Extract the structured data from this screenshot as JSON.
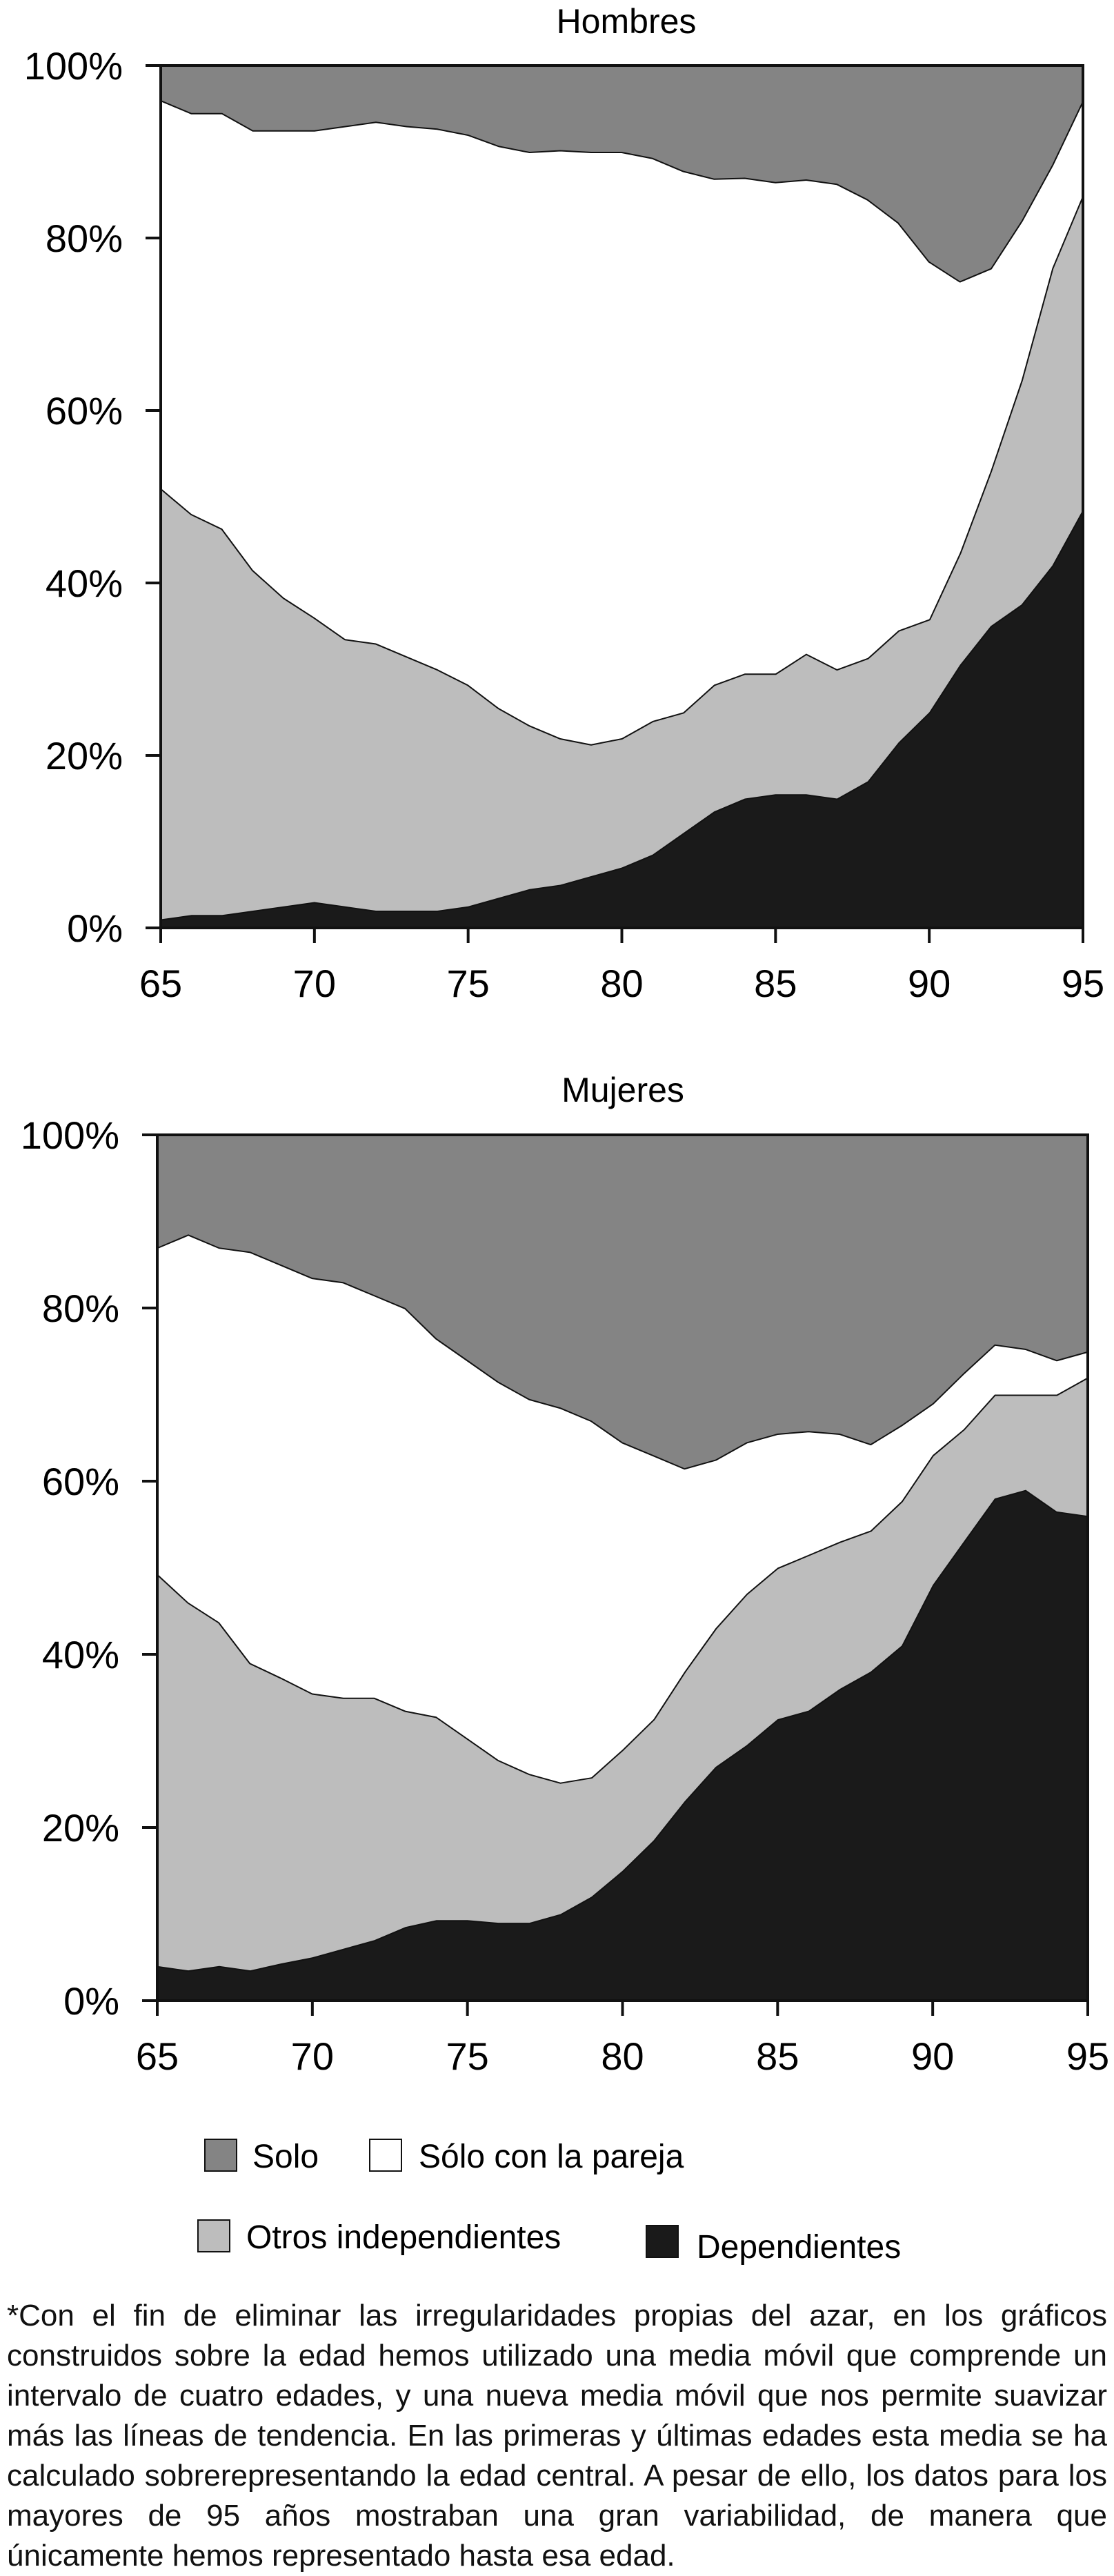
{
  "colors": {
    "solo": "#848484",
    "pareja": "#ffffff",
    "otros": "#bdbdbd",
    "dependientes": "#1a1a1a",
    "stroke": "#111111"
  },
  "legend": [
    {
      "key": "solo",
      "label": "Solo"
    },
    {
      "key": "pareja",
      "label": "Sólo con la pareja"
    },
    {
      "key": "otros",
      "label": "Otros independientes"
    },
    {
      "key": "dependientes",
      "label": "Dependientes"
    }
  ],
  "footnote": "*Con el fin de eliminar las irregularidades propias del azar, en los gráficos construidos sobre la edad hemos utilizado una media móvil que comprende un intervalo de cuatro edades, y una nueva media móvil que nos permite suavizar más las líneas de tendencia. En las primeras y últimas edades esta media se ha calculado sobrerepresentando la edad central. A pesar de ello, los datos para los mayores de 95 años mostraban una gran variabilidad, de manera que únicamente hemos representado hasta esa edad.",
  "chart_data": [
    {
      "type": "area",
      "stacked": true,
      "title": "Hombres",
      "x": [
        65,
        66,
        67,
        68,
        69,
        70,
        71,
        72,
        73,
        74,
        75,
        76,
        77,
        78,
        79,
        80,
        81,
        82,
        83,
        84,
        85,
        86,
        87,
        88,
        89,
        90,
        91,
        92,
        93,
        94,
        95
      ],
      "x_ticks": [
        "65",
        "70",
        "75",
        "80",
        "85",
        "90",
        "95"
      ],
      "y_ticks": [
        "0%",
        "20%",
        "40%",
        "60%",
        "80%",
        "100%"
      ],
      "ylim": [
        0,
        100
      ],
      "grid": false,
      "series": [
        {
          "name": "Dependientes",
          "key": "dependientes",
          "values": [
            1,
            1.5,
            1.5,
            2,
            2.5,
            3,
            2.5,
            2,
            2,
            2,
            2.5,
            3.5,
            4.5,
            5,
            6,
            7,
            8.5,
            11,
            13.5,
            15,
            15.5,
            15.5,
            15,
            17,
            21.5,
            25,
            30.5,
            35,
            37.5,
            42,
            48.5
          ]
        },
        {
          "name": "Otros independientes",
          "key": "otros",
          "values": [
            50,
            46.5,
            44.8,
            39.5,
            35.8,
            33,
            31,
            31,
            29.5,
            28,
            25.7,
            22,
            19,
            17,
            15.3,
            15,
            15.5,
            14,
            14.7,
            14.5,
            14,
            16.3,
            15,
            14.3,
            13,
            10.8,
            13,
            18,
            26,
            34.5,
            36.5
          ]
        },
        {
          "name": "Sólo con la pareja",
          "key": "pareja",
          "values": [
            45,
            46.5,
            48.2,
            51,
            54.2,
            56.5,
            59.5,
            60.5,
            61.5,
            62.7,
            63.8,
            65.2,
            66.5,
            68.2,
            68.7,
            68,
            65.3,
            62.8,
            58.7,
            57.5,
            57,
            55,
            56.3,
            53.2,
            47.3,
            41.5,
            31.5,
            23.5,
            18.5,
            12,
            11
          ]
        },
        {
          "name": "Solo",
          "key": "solo",
          "values": [
            4,
            5.5,
            5.5,
            7.5,
            7.5,
            7.5,
            7,
            6.5,
            7,
            7.3,
            8,
            9.3,
            10,
            9.8,
            10,
            10,
            10.7,
            12.2,
            13.1,
            13,
            13.5,
            13.2,
            13.7,
            15.5,
            18.2,
            22.7,
            25,
            23.5,
            18,
            11.5,
            4
          ]
        }
      ]
    },
    {
      "type": "area",
      "stacked": true,
      "title": "Mujeres",
      "x": [
        65,
        66,
        67,
        68,
        69,
        70,
        71,
        72,
        73,
        74,
        75,
        76,
        77,
        78,
        79,
        80,
        81,
        82,
        83,
        84,
        85,
        86,
        87,
        88,
        89,
        90,
        91,
        92,
        93,
        94,
        95
      ],
      "x_ticks": [
        "65",
        "70",
        "75",
        "80",
        "85",
        "90",
        "95"
      ],
      "y_ticks": [
        "0%",
        "20%",
        "40%",
        "60%",
        "80%",
        "100%"
      ],
      "ylim": [
        0,
        100
      ],
      "grid": false,
      "series": [
        {
          "name": "Dependientes",
          "key": "dependientes",
          "values": [
            4,
            3.5,
            4,
            3.5,
            4.3,
            5,
            6,
            7,
            8.5,
            9.3,
            9.3,
            9,
            9,
            10,
            12,
            15,
            18.5,
            23,
            27,
            29.5,
            32.5,
            33.5,
            36,
            38,
            41,
            48,
            53,
            58,
            59,
            56.5,
            56
          ]
        },
        {
          "name": "Otros independientes",
          "key": "otros",
          "values": [
            45.3,
            42.5,
            39.7,
            35.5,
            33,
            30.5,
            29,
            28,
            25,
            23.5,
            21,
            18.8,
            17.2,
            15.2,
            13.8,
            14,
            14,
            15,
            16,
            17.5,
            17.5,
            18,
            17,
            16.3,
            16.7,
            15,
            13,
            12,
            11,
            13.5,
            16
          ]
        },
        {
          "name": "Sólo con la pareja",
          "key": "pareja",
          "values": [
            37.7,
            42.5,
            43.3,
            47.5,
            47.7,
            48,
            48,
            46.5,
            46.5,
            43.7,
            43.7,
            43.7,
            43.3,
            43.3,
            41.2,
            35.5,
            30.5,
            23.5,
            19.5,
            17.5,
            15.5,
            14.3,
            12.5,
            10,
            8.8,
            6,
            6.5,
            5.8,
            5.3,
            4,
            3
          ]
        },
        {
          "name": "Solo",
          "key": "solo",
          "values": [
            13,
            11.5,
            13,
            13.5,
            15,
            16.5,
            17,
            18.5,
            20,
            23.5,
            26,
            28.5,
            30.5,
            31.5,
            33,
            35.5,
            37,
            38.5,
            37.5,
            35.5,
            34.5,
            34.2,
            34.5,
            35.7,
            33.5,
            31,
            27.5,
            24.2,
            24.7,
            26,
            25
          ]
        }
      ]
    }
  ]
}
